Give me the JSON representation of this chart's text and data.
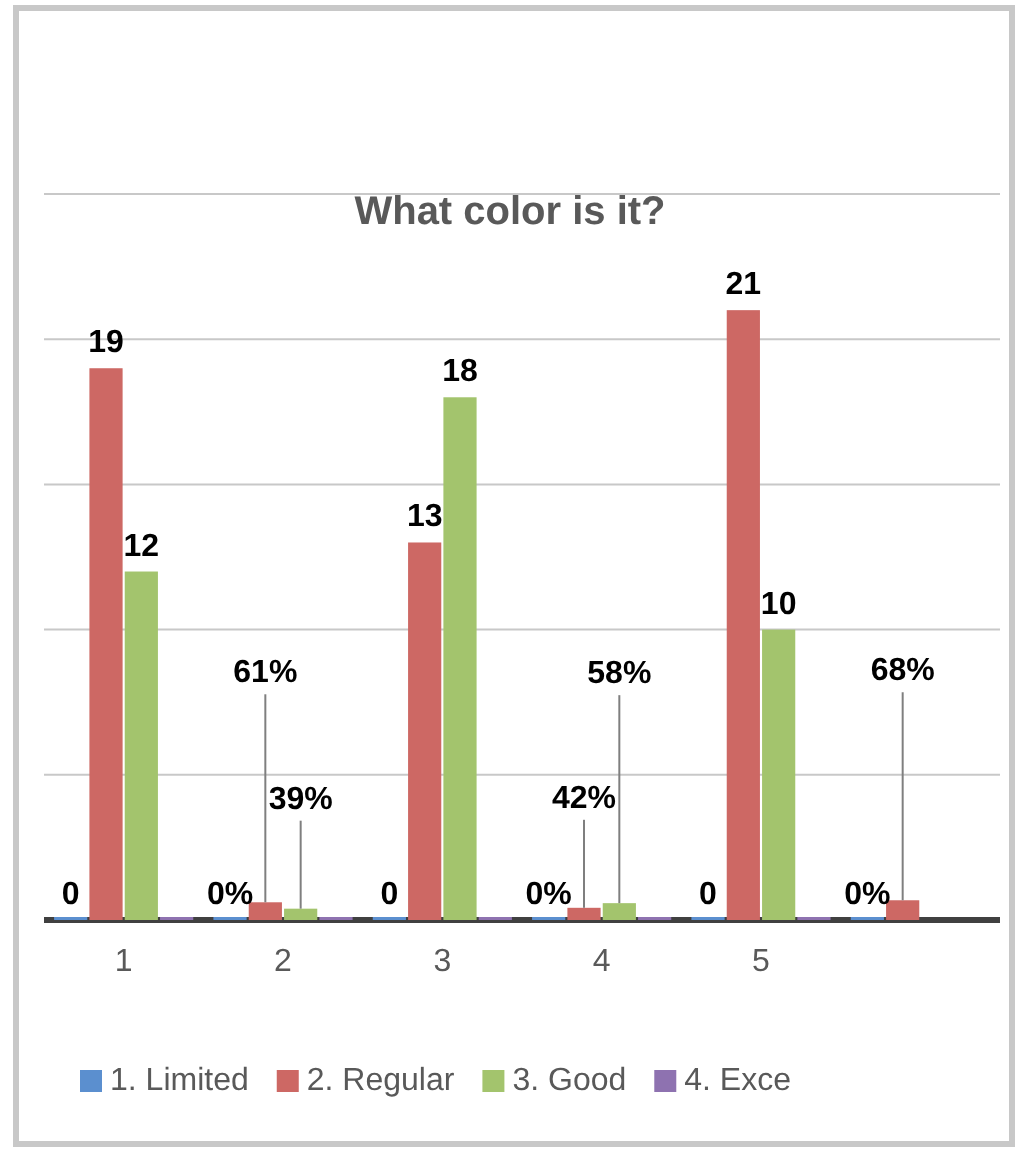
{
  "chart_data": {
    "type": "bar",
    "title": "What color is it?",
    "categories": [
      "1",
      "2",
      "3",
      "4",
      "5",
      null
    ],
    "series": [
      {
        "name": "1. Limited",
        "color": "#5b8fcf",
        "values": [
          0,
          0,
          0,
          0,
          0,
          0
        ],
        "value_labels": [
          "0",
          "0%",
          "0",
          "0%",
          "0",
          "0%"
        ]
      },
      {
        "name": "2. Regular",
        "color": "#cd6864",
        "values": [
          19,
          0.61,
          13,
          0.42,
          21,
          0.68
        ],
        "value_labels": [
          "19",
          "61%",
          "13",
          "42%",
          "21",
          "68%"
        ]
      },
      {
        "name": "3. Good",
        "color": "#a3c46d",
        "values": [
          12,
          0.39,
          18,
          0.58,
          10,
          null
        ],
        "value_labels": [
          "12",
          "39%",
          "18",
          "58%",
          "10",
          null
        ]
      },
      {
        "name": "4. Exce",
        "color": "#8e72b0",
        "values": [
          0,
          0,
          0,
          0,
          0,
          null
        ],
        "value_labels": [
          null,
          null,
          null,
          null,
          null,
          null
        ]
      }
    ],
    "ylim": [
      0,
      25
    ],
    "yticks": [
      {
        "value": 0,
        "label": null
      },
      {
        "value": 5,
        "label": null
      },
      {
        "value": 10,
        "label": null
      },
      {
        "value": 15,
        "label": null
      },
      {
        "value": 20,
        "label": null
      },
      {
        "value": 25,
        "label": null
      }
    ],
    "grid": "y",
    "tick_labels": "x",
    "legend": "bottom"
  }
}
